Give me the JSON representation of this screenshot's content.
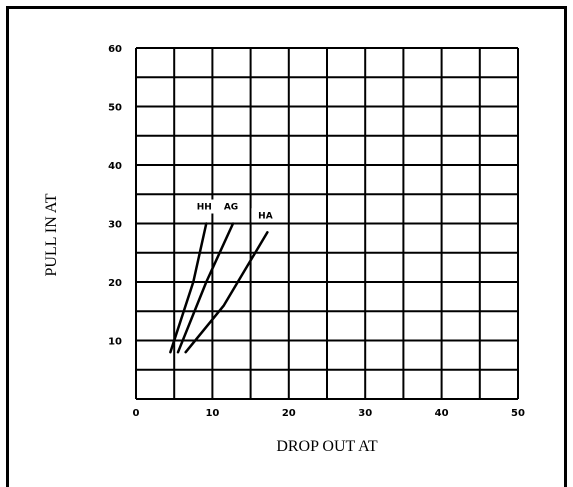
{
  "chart_data": {
    "type": "line",
    "title": "",
    "xlabel": "DROP OUT AT",
    "ylabel": "PULL IN AT",
    "xlim": [
      0,
      50
    ],
    "ylim": [
      0,
      60
    ],
    "x_ticks": [
      "0",
      "10",
      "20",
      "30",
      "40",
      "50"
    ],
    "y_ticks": [
      "10",
      "20",
      "30",
      "40",
      "50",
      "60"
    ],
    "grid": true,
    "series": [
      {
        "name": "HH",
        "points": [
          [
            4.5,
            8
          ],
          [
            7.5,
            20
          ],
          [
            9.2,
            30
          ]
        ]
      },
      {
        "name": "AG",
        "points": [
          [
            5.5,
            8
          ],
          [
            9.2,
            20
          ],
          [
            12.7,
            30
          ]
        ]
      },
      {
        "name": "HA",
        "points": [
          [
            6.5,
            8
          ],
          [
            11.5,
            16
          ],
          [
            17.2,
            28.5
          ]
        ]
      }
    ]
  }
}
